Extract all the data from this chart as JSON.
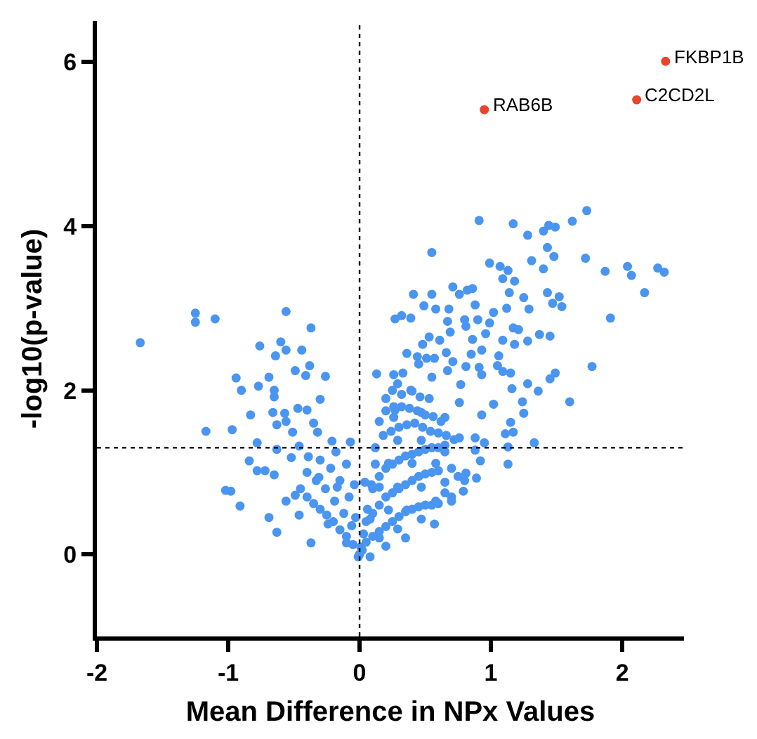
{
  "chart_data": {
    "type": "scatter",
    "xlabel": "Mean Difference in NPx Values",
    "ylabel": "-log10(p-value)",
    "xlim": [
      -2,
      2.47
    ],
    "ylim": [
      -1,
      6.5
    ],
    "xticks": [
      -2,
      -1,
      0,
      1,
      2
    ],
    "yticks": [
      0,
      2,
      4,
      6
    ],
    "marker": "circle",
    "series": [
      {
        "color": "#4a95f0",
        "x": [
          -1.67,
          -1.25,
          -1.25,
          -1.1,
          -0.56,
          -0.37,
          -0.76,
          -0.6,
          -0.56,
          -0.64,
          -0.44,
          -0.38,
          -0.49,
          -0.41,
          -0.26,
          -0.94,
          -0.69,
          -0.77,
          -0.9,
          -0.65,
          -0.3,
          -0.65,
          -0.47,
          -0.66,
          -0.83,
          -0.57,
          -0.4,
          -0.63,
          -0.56,
          -0.35,
          -1.17,
          -0.97,
          -0.51,
          -0.32,
          -0.78,
          -0.46,
          -0.21,
          -0.07,
          -0.63,
          -0.84,
          -0.78,
          -0.72,
          -0.65,
          -0.52,
          -0.39,
          -1.02,
          -0.98,
          -0.91,
          -0.69,
          -0.63,
          -0.37,
          -0.49,
          -0.31,
          -0.17,
          -0.24,
          -0.1,
          -0.01,
          -0.46,
          -0.56,
          1.73,
          1.62,
          0.91,
          1.17,
          1.44,
          1.49,
          1.4,
          1.28,
          0.55,
          1.43,
          1.48,
          1.72,
          1.31,
          0.99,
          1.07,
          2.04,
          2.27,
          2.32,
          2.07,
          1.87,
          1.4,
          1.13,
          1.09,
          1.18,
          0.71,
          0.82,
          0.86,
          0.76,
          0.41,
          0.55,
          1.14,
          1.43,
          2.17,
          1.52,
          1.25,
          1.54,
          1.47,
          0.49,
          0.88,
          0.68,
          0.58,
          1.29,
          1.12,
          1.02,
          0.27,
          0.32,
          0.39,
          0.8,
          0.9,
          0.67,
          0.99,
          1.91,
          1.17,
          1.21,
          0.69,
          0.81,
          0.53,
          0.61,
          0.86,
          0.96,
          1.09,
          1.28,
          1.37,
          1.45,
          1.18,
          0.48,
          0.93,
          0.36,
          0.66,
          0.44,
          0.51,
          0.57,
          0.85,
          1.06,
          0.71,
          0.45,
          1.77,
          0.81,
          0.91,
          1.05,
          1.09,
          1.15,
          0.13,
          0.26,
          0.33,
          0.67,
          1.49,
          1.45,
          0.55,
          0.93,
          1.28,
          1.36,
          1.16,
          0.77,
          0.29,
          0.4,
          0.2,
          1.6,
          1.24,
          1.02,
          0.76,
          1.25,
          1.15,
          0.93,
          0.65,
          0.47,
          0.27,
          0.15,
          1.17,
          1.11,
          1.33,
          0.95,
          0.88,
          0.76,
          1.13,
          0.88,
          1.13,
          0.92,
          0.81,
          0.89,
          0.79,
          0.7,
          0.57,
          0.01,
          0.15,
          0.29,
          0.47,
          0.58,
          0.65,
          0.47,
          0.29,
          0.15,
          0.04,
          0.22,
          0.4,
          0.58,
          0.29,
          0.47,
          0.65,
          0.26,
          0.22,
          0.36,
          0.08,
          0.08,
          0.0
        ],
        "values": [
          2.58,
          2.94,
          2.83,
          2.87,
          2.96,
          2.76,
          2.54,
          2.59,
          2.49,
          2.42,
          2.49,
          2.3,
          2.24,
          2.18,
          2.17,
          2.15,
          2.16,
          2.05,
          2.0,
          2.0,
          1.89,
          1.92,
          1.78,
          1.73,
          1.7,
          1.72,
          1.76,
          1.58,
          1.62,
          1.6,
          1.5,
          1.52,
          1.49,
          1.49,
          1.36,
          1.32,
          1.38,
          1.37,
          1.28,
          1.14,
          1.02,
          1.02,
          0.97,
          1.18,
          1.19,
          0.78,
          0.77,
          0.59,
          0.45,
          0.27,
          0.14,
          0.72,
          0.94,
          0.82,
          0.37,
          0.14,
          -0.03,
          0.48,
          0.65,
          4.19,
          4.06,
          4.07,
          4.03,
          4.01,
          3.99,
          3.94,
          3.89,
          3.68,
          3.74,
          3.63,
          3.61,
          3.58,
          3.55,
          3.51,
          3.51,
          3.49,
          3.44,
          3.4,
          3.45,
          3.48,
          3.46,
          3.36,
          3.33,
          3.26,
          3.22,
          3.24,
          3.17,
          3.17,
          3.17,
          3.19,
          3.19,
          3.19,
          3.14,
          3.13,
          3.02,
          3.06,
          3.03,
          3.04,
          2.99,
          2.99,
          2.99,
          3.0,
          2.95,
          2.87,
          2.91,
          2.88,
          2.86,
          2.86,
          2.84,
          2.82,
          2.88,
          2.76,
          2.74,
          2.71,
          2.78,
          2.65,
          2.61,
          2.62,
          2.69,
          2.61,
          2.6,
          2.68,
          2.66,
          2.56,
          2.56,
          2.49,
          2.45,
          2.46,
          2.41,
          2.39,
          2.39,
          2.44,
          2.42,
          2.35,
          2.32,
          2.29,
          2.29,
          2.28,
          2.3,
          2.23,
          2.21,
          2.2,
          2.19,
          2.21,
          2.24,
          2.21,
          2.14,
          2.16,
          2.19,
          2.08,
          1.99,
          2.02,
          2.07,
          2.08,
          1.99,
          1.9,
          1.86,
          1.86,
          1.83,
          1.85,
          1.72,
          1.61,
          1.7,
          1.67,
          1.73,
          1.76,
          1.62,
          1.49,
          1.47,
          1.36,
          1.36,
          1.42,
          1.42,
          1.31,
          1.27,
          1.1,
          1.14,
          0.99,
          0.93,
          0.77,
          0.65,
          0.37,
          0.09,
          0.2,
          0.31,
          0.43,
          0.65,
          0.88,
          0.82,
          0.82,
          0.82,
          0.88,
          1.11,
          1.11,
          1.11,
          1.39,
          1.39,
          1.33,
          1.67,
          0.54,
          0.54,
          0.43,
          -0.03,
          0.0
        ]
      },
      {
        "color": "#4a95f0",
        "x": [
          -0.45,
          -0.4,
          -0.35,
          -0.3,
          -0.25,
          -0.2,
          -0.15,
          -0.1,
          -0.05,
          -0.4,
          -0.33,
          -0.26,
          -0.19,
          -0.12,
          -0.06,
          -0.3,
          -0.22,
          -0.15,
          -0.08,
          -0.03,
          -0.18,
          -0.1,
          -0.04,
          0.02,
          0.05,
          0.1,
          0.15,
          0.2,
          0.25,
          0.3,
          0.35,
          0.4,
          0.45,
          0.5,
          0.55,
          0.6,
          0.05,
          0.1,
          0.15,
          0.2,
          0.25,
          0.3,
          0.35,
          0.4,
          0.45,
          0.5,
          0.55,
          0.6,
          0.65,
          0.7,
          0.1,
          0.15,
          0.2,
          0.25,
          0.3,
          0.35,
          0.4,
          0.45,
          0.5,
          0.55,
          0.6,
          0.65,
          0.7,
          0.75,
          0.8,
          0.12,
          0.18,
          0.24,
          0.3,
          0.36,
          0.42,
          0.48,
          0.54,
          0.6,
          0.66,
          0.72,
          0.2,
          0.26,
          0.32,
          0.38,
          0.44,
          0.5,
          0.56,
          0.62,
          0.25,
          0.32,
          0.39,
          0.46,
          0.53,
          0.03,
          0.06,
          0.09,
          0.12,
          0.2,
          0.35
        ],
        "values": [
          0.8,
          0.7,
          0.62,
          0.55,
          0.48,
          0.4,
          0.3,
          0.22,
          0.12,
          1.0,
          0.9,
          0.8,
          0.65,
          0.5,
          0.35,
          1.15,
          1.05,
          0.9,
          0.7,
          0.45,
          1.25,
          1.1,
          0.85,
          0.05,
          0.15,
          0.22,
          0.28,
          0.34,
          0.4,
          0.46,
          0.52,
          0.55,
          0.58,
          0.6,
          0.6,
          0.62,
          0.4,
          0.5,
          0.6,
          0.7,
          0.75,
          0.8,
          0.85,
          0.9,
          0.95,
          0.98,
          1.0,
          1.02,
          0.75,
          0.7,
          0.8,
          0.95,
          1.05,
          1.1,
          1.15,
          1.2,
          1.22,
          1.25,
          1.28,
          1.3,
          1.3,
          1.25,
          1.05,
          0.95,
          0.9,
          1.3,
          1.45,
          1.5,
          1.55,
          1.58,
          1.6,
          1.55,
          1.5,
          1.48,
          1.45,
          1.4,
          1.75,
          1.8,
          1.8,
          1.78,
          1.75,
          1.7,
          1.68,
          1.62,
          2.0,
          1.95,
          2.0,
          1.92,
          1.9,
          0.25,
          0.55,
          0.85,
          1.1,
          0.1,
          0.2
        ]
      },
      {
        "color": "#e8452c",
        "x": [
          2.33,
          2.11,
          0.95
        ],
        "values": [
          6.01,
          5.54,
          5.42
        ]
      }
    ],
    "annotations": [
      {
        "text": "FKBP1B",
        "x": 2.33,
        "y": 6.01
      },
      {
        "text": "C2CD2L",
        "x": 2.11,
        "y": 5.54
      },
      {
        "text": "RAB6B",
        "x": 0.95,
        "y": 5.42
      }
    ],
    "ref_lines": [
      {
        "axis": "x",
        "value": 0,
        "color": "#000000",
        "line_style": "dotted"
      },
      {
        "axis": "y",
        "value": 1.3,
        "color": "#000000",
        "line_style": "dotted"
      }
    ]
  }
}
